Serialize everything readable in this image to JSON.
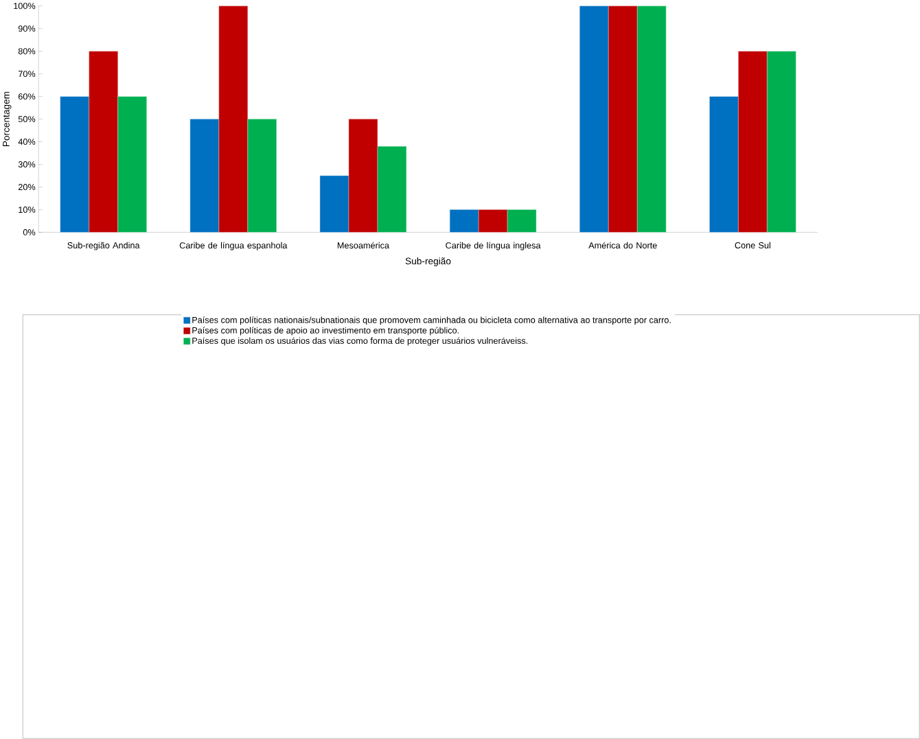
{
  "chart_data": {
    "type": "bar",
    "xlabel": "Sub-região",
    "ylabel": "Porcentagem",
    "categories": [
      "Sub-região Andina",
      "Caribe de língua espanhola",
      "Mesoamérica",
      "Caribe de língua inglesa",
      "América do Norte",
      "Cone Sul"
    ],
    "series": [
      {
        "name": "Países com políticas nationais/subnationais que promovem caminhada ou bicicleta como alternativa ao transporte por carro.",
        "color": "#0070c0",
        "values": [
          60,
          50,
          25,
          10,
          100,
          60
        ]
      },
      {
        "name": "Países com políticas de apoio ao investimento em transporte público.",
        "color": "#c00000",
        "values": [
          80,
          100,
          50,
          10,
          100,
          80
        ]
      },
      {
        "name": "Países que isolam os usuários das vias como forma de proteger usuários vulneráveiss.",
        "color": "#00b050",
        "values": [
          60,
          50,
          38,
          10,
          100,
          80
        ]
      }
    ],
    "ylim": [
      0,
      100
    ],
    "yticks": [
      {
        "value": 0,
        "label": "0%"
      },
      {
        "value": 10,
        "label": "10%"
      },
      {
        "value": 20,
        "label": "20%"
      },
      {
        "value": 30,
        "label": "30%"
      },
      {
        "value": 40,
        "label": "40%"
      },
      {
        "value": 50,
        "label": "50%"
      },
      {
        "value": 60,
        "label": "60%"
      },
      {
        "value": 70,
        "label": "70%"
      },
      {
        "value": 80,
        "label": "80%"
      },
      {
        "value": 90,
        "label": "90%"
      },
      {
        "value": 100,
        "label": "100%"
      }
    ],
    "grid": false,
    "legend": "bottom"
  }
}
